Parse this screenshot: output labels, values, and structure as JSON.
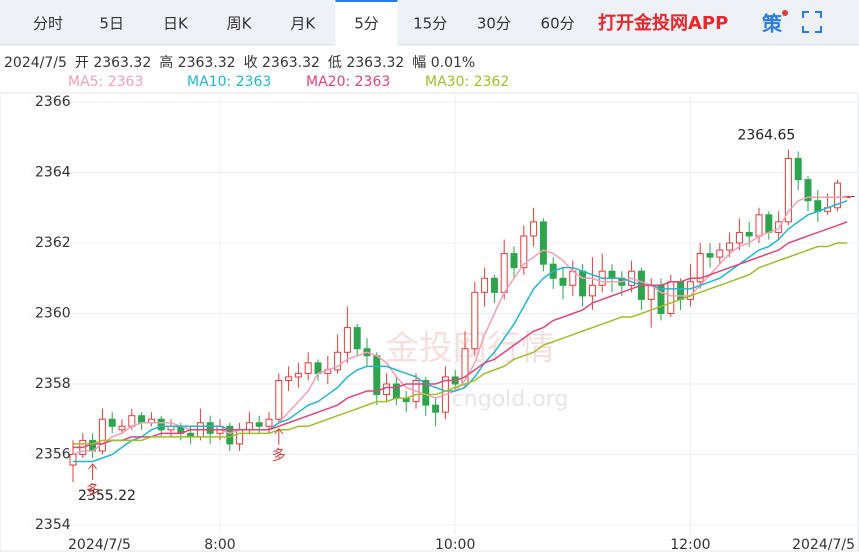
{
  "header": {
    "tabs": [
      "分时",
      "5日",
      "日K",
      "周K",
      "月K",
      "5分",
      "15分",
      "30分",
      "60分"
    ],
    "active_tab": 5,
    "app_link": "打开金投网APP",
    "strategy": "策"
  },
  "info": [
    "2024/7/5",
    "开 2363.32",
    "高 2363.32",
    "收 2363.32",
    "低 2363.32",
    "幅 0.01%"
  ],
  "watermark": [
    "金投网行情",
    "cngold.org"
  ],
  "chart_data": {
    "type": "candlestick",
    "categories": [
      "2024/7/5",
      null,
      null,
      null,
      null,
      null,
      null,
      null,
      null,
      null,
      null,
      null,
      null,
      null,
      null,
      "8:00",
      null,
      null,
      null,
      null,
      null,
      null,
      null,
      null,
      null,
      null,
      null,
      null,
      null,
      null,
      null,
      null,
      null,
      null,
      null,
      null,
      null,
      null,
      null,
      "10:00",
      null,
      null,
      null,
      null,
      null,
      null,
      null,
      null,
      null,
      null,
      null,
      null,
      null,
      null,
      null,
      null,
      null,
      null,
      null,
      null,
      null,
      null,
      null,
      "12:00",
      null,
      null,
      null,
      null,
      null,
      null,
      null,
      null,
      null,
      null,
      null,
      null,
      null,
      null,
      null,
      "2024/7/5"
    ],
    "open": [
      2355.7,
      2356.0,
      2356.4,
      2356.1,
      2357.0,
      2356.7,
      2356.8,
      2357.1,
      2356.9,
      2357.0,
      2356.7,
      2356.8,
      2356.6,
      2356.5,
      2356.9,
      2356.6,
      2356.8,
      2356.3,
      2356.7,
      2356.9,
      2356.8,
      2357.0,
      2358.1,
      2358.2,
      2358.3,
      2358.6,
      2358.3,
      2358.4,
      2358.9,
      2359.6,
      2359.0,
      2358.8,
      2357.7,
      2358.0,
      2357.6,
      2357.5,
      2358.1,
      2357.4,
      2357.2,
      2358.2,
      2358.0,
      2359.0,
      2360.6,
      2361.0,
      2360.6,
      2361.7,
      2361.3,
      2362.2,
      2362.6,
      2361.4,
      2361.0,
      2360.8,
      2361.2,
      2360.5,
      2360.8,
      2361.2,
      2361.0,
      2360.8,
      2361.2,
      2360.4,
      2360.8,
      2360.0,
      2360.9,
      2360.4,
      2360.9,
      2361.7,
      2361.6,
      2361.8,
      2362.0,
      2362.3,
      2362.2,
      2362.8,
      2362.3,
      2362.6,
      2364.4,
      2363.8,
      2363.2,
      2362.9,
      2363.0,
      2363.32
    ],
    "high": [
      2356.4,
      2356.6,
      2356.6,
      2357.3,
      2357.2,
      2357.0,
      2357.3,
      2357.2,
      2357.2,
      2357.1,
      2357.0,
      2356.9,
      2356.8,
      2357.3,
      2357.1,
      2357.0,
      2356.9,
      2356.9,
      2357.2,
      2357.1,
      2357.2,
      2358.3,
      2358.5,
      2358.6,
      2358.9,
      2358.7,
      2358.8,
      2359.4,
      2360.2,
      2359.7,
      2359.3,
      2358.9,
      2358.3,
      2358.2,
      2357.8,
      2358.3,
      2358.2,
      2357.6,
      2358.5,
      2358.4,
      2359.5,
      2360.9,
      2361.3,
      2361.1,
      2362.1,
      2361.9,
      2362.5,
      2363.0,
      2362.7,
      2361.6,
      2361.3,
      2361.5,
      2361.4,
      2361.6,
      2361.7,
      2361.4,
      2361.2,
      2361.5,
      2361.3,
      2361.0,
      2361.0,
      2361.1,
      2361.0,
      2361.4,
      2362.0,
      2362.0,
      2362.0,
      2362.3,
      2362.7,
      2362.6,
      2363.0,
      2362.9,
      2362.9,
      2364.65,
      2364.6,
      2363.9,
      2363.5,
      2363.4,
      2363.8,
      2363.32
    ],
    "low": [
      2355.22,
      2355.9,
      2355.9,
      2356.0,
      2356.6,
      2356.6,
      2356.7,
      2356.7,
      2356.8,
      2356.5,
      2356.5,
      2356.4,
      2356.3,
      2356.4,
      2356.3,
      2356.4,
      2356.1,
      2356.1,
      2356.6,
      2356.6,
      2356.6,
      2356.9,
      2357.8,
      2357.9,
      2358.1,
      2358.1,
      2358.0,
      2358.3,
      2358.6,
      2358.8,
      2358.5,
      2357.4,
      2357.5,
      2357.4,
      2357.2,
      2357.3,
      2357.1,
      2356.8,
      2357.0,
      2357.8,
      2357.9,
      2358.8,
      2360.2,
      2360.3,
      2360.4,
      2361.0,
      2361.1,
      2361.9,
      2361.2,
      2360.7,
      2360.4,
      2360.5,
      2360.2,
      2360.1,
      2360.6,
      2360.6,
      2360.5,
      2360.6,
      2360.1,
      2359.6,
      2359.8,
      2359.9,
      2360.1,
      2360.2,
      2360.7,
      2361.3,
      2361.4,
      2361.6,
      2361.8,
      2361.9,
      2362.0,
      2362.1,
      2362.1,
      2362.5,
      2363.5,
      2362.9,
      2362.6,
      2362.8,
      2362.9,
      2363.32
    ],
    "close": [
      2356.0,
      2356.4,
      2356.1,
      2357.0,
      2356.8,
      2356.8,
      2357.1,
      2356.9,
      2357.0,
      2356.7,
      2356.8,
      2356.6,
      2356.5,
      2356.9,
      2356.6,
      2356.8,
      2356.3,
      2356.7,
      2356.9,
      2356.8,
      2357.0,
      2358.1,
      2358.2,
      2358.3,
      2358.6,
      2358.3,
      2358.4,
      2358.9,
      2359.6,
      2359.0,
      2358.8,
      2357.7,
      2358.0,
      2357.6,
      2357.5,
      2358.1,
      2357.4,
      2357.2,
      2358.2,
      2358.0,
      2359.0,
      2360.6,
      2361.0,
      2360.6,
      2361.7,
      2361.3,
      2362.2,
      2362.6,
      2361.4,
      2361.0,
      2360.8,
      2361.2,
      2360.5,
      2360.8,
      2361.2,
      2361.0,
      2360.8,
      2361.2,
      2360.4,
      2360.8,
      2360.0,
      2360.9,
      2360.4,
      2360.9,
      2361.7,
      2361.6,
      2361.8,
      2362.0,
      2362.3,
      2362.2,
      2362.8,
      2362.3,
      2362.6,
      2364.4,
      2363.8,
      2363.2,
      2362.9,
      2363.0,
      2363.7,
      2363.32
    ],
    "up_color": "#e03c3c",
    "down_color": "#2ea44f",
    "series": [
      {
        "name": "MA5: 2363",
        "color": "#f2a0b8",
        "values": [
          2356.0,
          2356.1,
          2356.1,
          2356.3,
          2356.5,
          2356.6,
          2356.8,
          2356.9,
          2356.9,
          2356.9,
          2356.9,
          2356.8,
          2356.7,
          2356.7,
          2356.7,
          2356.7,
          2356.6,
          2356.7,
          2356.7,
          2356.7,
          2356.7,
          2356.9,
          2357.2,
          2357.5,
          2357.8,
          2358.3,
          2358.4,
          2358.5,
          2358.7,
          2358.8,
          2358.9,
          2358.8,
          2358.6,
          2358.2,
          2357.9,
          2357.8,
          2357.7,
          2357.6,
          2357.7,
          2357.8,
          2358.1,
          2358.6,
          2359.4,
          2360.0,
          2360.6,
          2361.0,
          2361.4,
          2361.6,
          2361.8,
          2361.7,
          2361.5,
          2361.2,
          2361.0,
          2361.0,
          2360.9,
          2360.9,
          2360.9,
          2361.0,
          2360.9,
          2360.8,
          2360.6,
          2360.5,
          2360.5,
          2360.5,
          2360.8,
          2361.1,
          2361.4,
          2361.7,
          2361.9,
          2362.0,
          2362.2,
          2362.3,
          2362.4,
          2362.9,
          2363.2,
          2363.3,
          2363.3,
          2363.3,
          2363.3,
          2363.3
        ]
      },
      {
        "name": "MA10: 2363",
        "color": "#22b6cf",
        "values": [
          2355.8,
          2355.8,
          2355.8,
          2355.9,
          2356.0,
          2356.2,
          2356.4,
          2356.5,
          2356.7,
          2356.8,
          2356.8,
          2356.8,
          2356.8,
          2356.8,
          2356.8,
          2356.8,
          2356.7,
          2356.7,
          2356.7,
          2356.7,
          2356.7,
          2356.9,
          2357.0,
          2357.2,
          2357.4,
          2357.5,
          2357.7,
          2357.9,
          2358.2,
          2358.4,
          2358.5,
          2358.5,
          2358.5,
          2358.4,
          2358.3,
          2358.2,
          2358.0,
          2357.9,
          2357.8,
          2357.8,
          2357.9,
          2358.2,
          2358.6,
          2358.9,
          2359.3,
          2359.7,
          2360.2,
          2360.7,
          2361.0,
          2361.2,
          2361.3,
          2361.3,
          2361.2,
          2361.1,
          2361.0,
          2361.0,
          2361.0,
          2360.9,
          2360.8,
          2360.8,
          2360.7,
          2360.7,
          2360.7,
          2360.7,
          2360.8,
          2360.9,
          2361.0,
          2361.2,
          2361.4,
          2361.6,
          2361.8,
          2361.9,
          2362.1,
          2362.4,
          2362.6,
          2362.8,
          2362.9,
          2363.0,
          2363.1,
          2363.2
        ]
      },
      {
        "name": "MA20: 2363",
        "color": "#e0457a",
        "values": [
          2356.2,
          2356.2,
          2356.3,
          2356.3,
          2356.4,
          2356.4,
          2356.5,
          2356.5,
          2356.5,
          2356.6,
          2356.6,
          2356.6,
          2356.7,
          2356.7,
          2356.7,
          2356.7,
          2356.7,
          2356.7,
          2356.7,
          2356.7,
          2356.7,
          2356.8,
          2356.9,
          2357.0,
          2357.1,
          2357.2,
          2357.3,
          2357.4,
          2357.6,
          2357.7,
          2357.8,
          2357.8,
          2357.9,
          2357.9,
          2358.0,
          2358.0,
          2358.0,
          2358.0,
          2358.1,
          2358.1,
          2358.2,
          2358.4,
          2358.6,
          2358.7,
          2358.9,
          2359.1,
          2359.3,
          2359.5,
          2359.6,
          2359.8,
          2359.9,
          2360.0,
          2360.1,
          2360.3,
          2360.4,
          2360.5,
          2360.6,
          2360.7,
          2360.8,
          2360.8,
          2360.8,
          2360.9,
          2360.9,
          2361.0,
          2361.0,
          2361.1,
          2361.2,
          2361.3,
          2361.4,
          2361.5,
          2361.6,
          2361.7,
          2361.8,
          2362.0,
          2362.1,
          2362.2,
          2362.3,
          2362.4,
          2362.5,
          2362.6
        ]
      },
      {
        "name": "MA30: 2362",
        "color": "#9cbf2a",
        "values": [
          2356.3,
          2356.3,
          2356.3,
          2356.4,
          2356.4,
          2356.4,
          2356.4,
          2356.4,
          2356.5,
          2356.5,
          2356.5,
          2356.5,
          2356.5,
          2356.5,
          2356.5,
          2356.5,
          2356.5,
          2356.6,
          2356.6,
          2356.6,
          2356.6,
          2356.7,
          2356.7,
          2356.8,
          2356.8,
          2356.9,
          2357.0,
          2357.1,
          2357.2,
          2357.3,
          2357.4,
          2357.5,
          2357.5,
          2357.6,
          2357.6,
          2357.7,
          2357.7,
          2357.7,
          2357.8,
          2357.9,
          2358.0,
          2358.1,
          2358.3,
          2358.4,
          2358.5,
          2358.7,
          2358.8,
          2358.9,
          2359.1,
          2359.2,
          2359.3,
          2359.4,
          2359.5,
          2359.6,
          2359.7,
          2359.8,
          2359.9,
          2359.9,
          2360.0,
          2360.1,
          2360.2,
          2360.3,
          2360.4,
          2360.5,
          2360.6,
          2360.7,
          2360.8,
          2360.9,
          2361.0,
          2361.1,
          2361.3,
          2361.4,
          2361.5,
          2361.6,
          2361.7,
          2361.8,
          2361.9,
          2361.9,
          2362.0,
          2362.0
        ]
      }
    ],
    "signals": [
      "多",
      "多"
    ],
    "ylim": [
      2353.8,
      2366.2
    ],
    "yticks": [
      2354,
      2356,
      2358,
      2360,
      2362,
      2364,
      2366
    ],
    "grid": true
  }
}
